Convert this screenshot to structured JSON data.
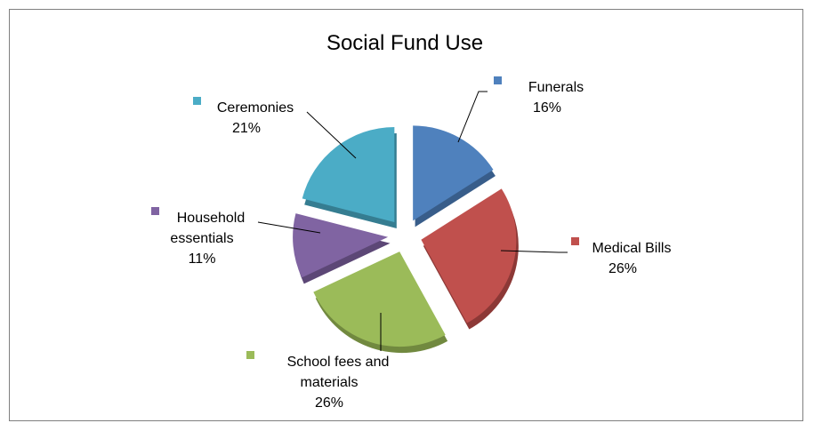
{
  "chart_data": {
    "type": "pie",
    "title": "Social Fund Use",
    "exploded": true,
    "style": "3d-shadow",
    "slices": [
      {
        "name": "Funerals",
        "label_lines": [
          "Funerals",
          "16%"
        ],
        "value": 16,
        "color": "#4f81bd",
        "side": "#385d8a"
      },
      {
        "name": "Medical Bills",
        "label_lines": [
          "Medical Bills",
          "26%"
        ],
        "value": 26,
        "color": "#c0504d",
        "side": "#8c3836"
      },
      {
        "name": "School fees and materials",
        "label_lines": [
          "School fees and",
          "materials",
          "26%"
        ],
        "value": 26,
        "color": "#9bbb59",
        "side": "#71893f"
      },
      {
        "name": "Household essentials",
        "label_lines": [
          "Household",
          "essentials",
          "11%"
        ],
        "value": 11,
        "color": "#8064a2",
        "side": "#5c4776"
      },
      {
        "name": "Ceremonies",
        "label_lines": [
          "Ceremonies",
          "21%"
        ],
        "value": 21,
        "color": "#4bacc6",
        "side": "#357d91"
      }
    ]
  }
}
